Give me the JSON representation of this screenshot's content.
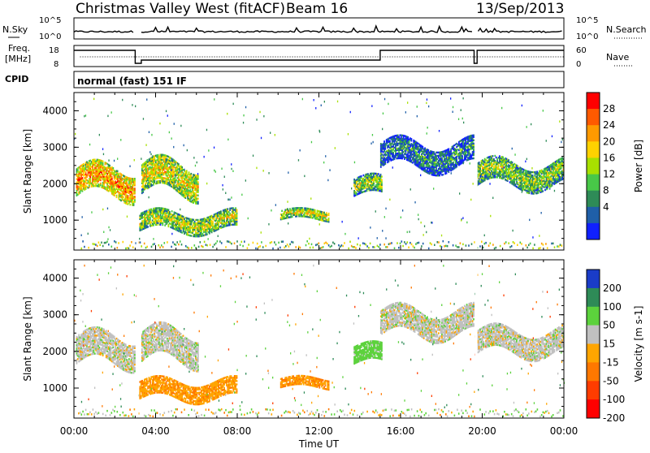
{
  "header": {
    "site": "Christmas Valley West (fitACF)",
    "beam": "Beam 16",
    "date": "13/Sep/2013",
    "mode": "normal (fast) 151 IF"
  },
  "labels": {
    "nsky": "N.Sky",
    "nsearch": "N.Search",
    "freq_line1": "Freq.",
    "freq_line2": "[MHz]",
    "nave": "Nave",
    "cpid": "CPID",
    "noise_ticks": [
      "10^5",
      "10^0"
    ],
    "freq_ticks": [
      "18",
      "8"
    ],
    "nave_ticks": [
      "60",
      "0"
    ]
  },
  "chart_data": [
    {
      "type": "heatmap",
      "name": "power",
      "ylabel": "Slant Range [km]",
      "xlabel": "",
      "colorbar_label": "Power [dB]",
      "colorbar_ticks": [
        "28",
        "24",
        "20",
        "16",
        "12",
        "8",
        "4"
      ],
      "colors": [
        "#ff0000",
        "#ff5a00",
        "#ff9a00",
        "#ffd200",
        "#a8e000",
        "#48c848",
        "#2e8b57",
        "#1f5fa8",
        "#1020ff"
      ],
      "x_ticks": [
        "00:00",
        "04:00",
        "08:00",
        "12:00",
        "16:00",
        "20:00",
        "00:00"
      ],
      "y_ticks": [
        "4000",
        "3000",
        "2000",
        "1000"
      ],
      "xlim": [
        0,
        24
      ],
      "ylim": [
        180,
        4500
      ],
      "regions": [
        {
          "t0": 0.1,
          "t1": 3.0,
          "r0": 1500,
          "r1": 2550,
          "value": 22
        },
        {
          "t0": 3.3,
          "t1": 6.1,
          "r0": 1550,
          "r1": 2700,
          "value": 18
        },
        {
          "t0": 3.2,
          "t1": 8.0,
          "r0": 600,
          "r1": 1250,
          "value": 16
        },
        {
          "t0": 10.1,
          "t1": 12.5,
          "r0": 950,
          "r1": 1300,
          "value": 17
        },
        {
          "t0": 13.7,
          "t1": 15.1,
          "r0": 1550,
          "r1": 2200,
          "value": 15
        },
        {
          "t0": 15.0,
          "t1": 19.6,
          "r0": 2300,
          "r1": 3250,
          "value": 8
        },
        {
          "t0": 19.7,
          "t1": 24.0,
          "r0": 1800,
          "r1": 2700,
          "value": 14
        }
      ]
    },
    {
      "type": "heatmap",
      "name": "velocity",
      "ylabel": "Slant Range [km]",
      "xlabel": "Time UT",
      "colorbar_label": "Velocity [m s-1]",
      "colorbar_ticks": [
        "200",
        "100",
        "50",
        "15",
        "-15",
        "-50",
        "-100",
        "-200"
      ],
      "colors": [
        "#1a3cc8",
        "#2e8b57",
        "#5cd23c",
        "#c0c0c0",
        "#ffa500",
        "#ff7800",
        "#ff3c00",
        "#ff0000"
      ],
      "x_ticks": [
        "00:00",
        "04:00",
        "08:00",
        "12:00",
        "16:00",
        "20:00",
        "00:00"
      ],
      "y_ticks": [
        "4000",
        "3000",
        "2000",
        "1000"
      ],
      "xlim": [
        0,
        24
      ],
      "ylim": [
        180,
        4500
      ],
      "regions": [
        {
          "t0": 0.1,
          "t1": 3.0,
          "r0": 1500,
          "r1": 2550,
          "value": 0
        },
        {
          "t0": 3.3,
          "t1": 6.1,
          "r0": 1550,
          "r1": 2700,
          "value": 0
        },
        {
          "t0": 3.2,
          "t1": 8.0,
          "r0": 600,
          "r1": 1250,
          "value": -40
        },
        {
          "t0": 10.1,
          "t1": 12.5,
          "r0": 950,
          "r1": 1300,
          "value": -45
        },
        {
          "t0": 13.7,
          "t1": 15.1,
          "r0": 1550,
          "r1": 2200,
          "value": 30
        },
        {
          "t0": 15.0,
          "t1": 19.6,
          "r0": 2300,
          "r1": 3250,
          "value": 0
        },
        {
          "t0": 19.7,
          "t1": 24.0,
          "r0": 1800,
          "r1": 2700,
          "value": 0
        }
      ]
    }
  ]
}
